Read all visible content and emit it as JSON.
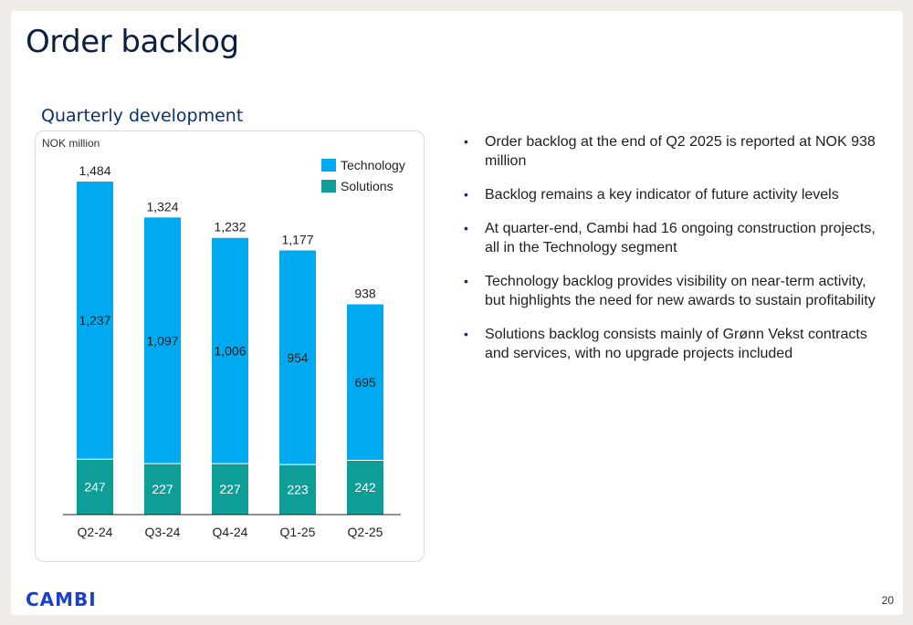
{
  "page": {
    "title": "Order backlog",
    "subtitle": "Quarterly development",
    "logo": "CAMBI",
    "page_number": "20"
  },
  "bullets": [
    "Order backlog at the end of Q2 2025 is reported at NOK 938 million",
    "Backlog remains a key indicator of future activity levels",
    "At quarter-end, Cambi had 16 ongoing construction projects, all in the Technology segment",
    "Technology backlog provides visibility on near-term activity, but highlights the need for new awards to sustain profitability",
    "Solutions backlog consists mainly of Grønn Vekst contracts and services, with no upgrade projects included"
  ],
  "chart_data": {
    "type": "bar",
    "stacked": true,
    "unit_label": "NOK million",
    "categories": [
      "Q2-24",
      "Q3-24",
      "Q4-24",
      "Q1-25",
      "Q2-25"
    ],
    "series": [
      {
        "name": "Solutions",
        "values": [
          247,
          227,
          227,
          223,
          242
        ],
        "color": "#0e9e98"
      },
      {
        "name": "Technology",
        "values": [
          1237,
          1097,
          1006,
          954,
          695
        ],
        "color": "#00aaf0"
      }
    ],
    "totals": [
      "1,484",
      "1,324",
      "1,232",
      "1,177",
      "938"
    ],
    "segment_labels": {
      "Solutions": [
        "247",
        "227",
        "227",
        "223",
        "242"
      ],
      "Technology": [
        "1,237",
        "1,097",
        "1,006",
        "954",
        "695"
      ]
    },
    "legend": [
      "Technology",
      "Solutions"
    ],
    "legend_position": "top-right",
    "ylim": [
      0,
      1484
    ],
    "grid": false
  }
}
